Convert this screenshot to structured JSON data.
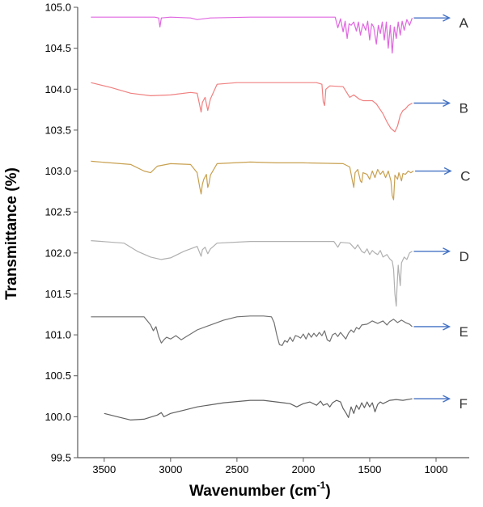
{
  "chart_data": {
    "type": "line",
    "xlabel": "Wavenumber (cm",
    "xlabel_superscript": "-1",
    "xlabel_suffix": ")",
    "ylabel": "Transmittance (%)",
    "xlim": [
      3700,
      750
    ],
    "ylim": [
      99.5,
      105.0
    ],
    "x_ticks": [
      3500,
      3000,
      2500,
      2000,
      1500,
      1000
    ],
    "y_ticks": [
      99.5,
      100.0,
      100.5,
      101.0,
      101.5,
      102.0,
      102.5,
      103.0,
      103.5,
      104.0,
      104.5,
      105.0
    ],
    "grid": false,
    "axis_color": "#595959",
    "arrow_color": "#4472c4",
    "series": [
      {
        "name": "A",
        "color": "#e066e0",
        "points": [
          [
            3600,
            104.88
          ],
          [
            3120,
            104.88
          ],
          [
            3090,
            104.87
          ],
          [
            3080,
            104.76
          ],
          [
            3070,
            104.87
          ],
          [
            3000,
            104.88
          ],
          [
            2850,
            104.87
          ],
          [
            2800,
            104.85
          ],
          [
            2700,
            104.87
          ],
          [
            2400,
            104.88
          ],
          [
            2000,
            104.88
          ],
          [
            1760,
            104.88
          ],
          [
            1740,
            104.75
          ],
          [
            1720,
            104.86
          ],
          [
            1700,
            104.7
          ],
          [
            1685,
            104.83
          ],
          [
            1670,
            104.62
          ],
          [
            1655,
            104.8
          ],
          [
            1640,
            104.78
          ],
          [
            1620,
            104.82
          ],
          [
            1600,
            104.71
          ],
          [
            1585,
            104.82
          ],
          [
            1570,
            104.66
          ],
          [
            1550,
            104.8
          ],
          [
            1530,
            104.72
          ],
          [
            1515,
            104.83
          ],
          [
            1500,
            104.6
          ],
          [
            1485,
            104.8
          ],
          [
            1470,
            104.76
          ],
          [
            1450,
            104.55
          ],
          [
            1435,
            104.78
          ],
          [
            1420,
            104.68
          ],
          [
            1405,
            104.82
          ],
          [
            1390,
            104.6
          ],
          [
            1375,
            104.82
          ],
          [
            1360,
            104.5
          ],
          [
            1345,
            104.78
          ],
          [
            1330,
            104.44
          ],
          [
            1315,
            104.76
          ],
          [
            1300,
            104.62
          ],
          [
            1285,
            104.82
          ],
          [
            1270,
            104.66
          ],
          [
            1255,
            104.83
          ],
          [
            1240,
            104.72
          ],
          [
            1220,
            104.85
          ],
          [
            1200,
            104.78
          ],
          [
            1180,
            104.87
          ]
        ]
      },
      {
        "name": "B",
        "color": "#f08080",
        "points": [
          [
            3600,
            104.08
          ],
          [
            3450,
            104.02
          ],
          [
            3300,
            103.95
          ],
          [
            3150,
            103.92
          ],
          [
            3000,
            103.93
          ],
          [
            2850,
            103.96
          ],
          [
            2800,
            103.95
          ],
          [
            2780,
            103.8
          ],
          [
            2770,
            103.72
          ],
          [
            2760,
            103.84
          ],
          [
            2740,
            103.9
          ],
          [
            2720,
            103.74
          ],
          [
            2700,
            103.88
          ],
          [
            2650,
            104.06
          ],
          [
            2500,
            104.08
          ],
          [
            2200,
            104.08
          ],
          [
            1900,
            104.08
          ],
          [
            1860,
            104.06
          ],
          [
            1850,
            103.85
          ],
          [
            1840,
            103.8
          ],
          [
            1830,
            104.0
          ],
          [
            1800,
            104.04
          ],
          [
            1700,
            104.03
          ],
          [
            1650,
            103.9
          ],
          [
            1620,
            103.93
          ],
          [
            1580,
            103.88
          ],
          [
            1550,
            103.86
          ],
          [
            1480,
            103.86
          ],
          [
            1450,
            103.82
          ],
          [
            1400,
            103.7
          ],
          [
            1370,
            103.6
          ],
          [
            1340,
            103.52
          ],
          [
            1310,
            103.48
          ],
          [
            1290,
            103.55
          ],
          [
            1270,
            103.68
          ],
          [
            1250,
            103.74
          ],
          [
            1230,
            103.76
          ],
          [
            1210,
            103.8
          ],
          [
            1180,
            103.83
          ]
        ]
      },
      {
        "name": "C",
        "color": "#c8a050",
        "points": [
          [
            3600,
            103.12
          ],
          [
            3300,
            103.08
          ],
          [
            3200,
            103.0
          ],
          [
            3150,
            102.98
          ],
          [
            3100,
            103.06
          ],
          [
            3000,
            103.09
          ],
          [
            2850,
            103.08
          ],
          [
            2800,
            102.98
          ],
          [
            2780,
            102.8
          ],
          [
            2770,
            102.72
          ],
          [
            2760,
            102.84
          ],
          [
            2750,
            102.9
          ],
          [
            2730,
            102.96
          ],
          [
            2720,
            102.8
          ],
          [
            2710,
            102.85
          ],
          [
            2700,
            102.95
          ],
          [
            2650,
            103.09
          ],
          [
            2400,
            103.11
          ],
          [
            2200,
            103.1
          ],
          [
            2000,
            103.1
          ],
          [
            1700,
            103.09
          ],
          [
            1650,
            103.05
          ],
          [
            1630,
            102.88
          ],
          [
            1620,
            102.8
          ],
          [
            1610,
            102.98
          ],
          [
            1590,
            103.02
          ],
          [
            1570,
            102.88
          ],
          [
            1560,
            102.86
          ],
          [
            1550,
            102.98
          ],
          [
            1520,
            102.96
          ],
          [
            1500,
            102.9
          ],
          [
            1480,
            103.0
          ],
          [
            1460,
            102.92
          ],
          [
            1440,
            103.02
          ],
          [
            1420,
            102.96
          ],
          [
            1400,
            103.0
          ],
          [
            1380,
            102.92
          ],
          [
            1360,
            103.0
          ],
          [
            1340,
            102.88
          ],
          [
            1330,
            102.7
          ],
          [
            1320,
            102.65
          ],
          [
            1310,
            102.95
          ],
          [
            1290,
            102.9
          ],
          [
            1280,
            102.98
          ],
          [
            1260,
            102.88
          ],
          [
            1250,
            102.97
          ],
          [
            1230,
            102.96
          ],
          [
            1210,
            103.0
          ],
          [
            1190,
            102.98
          ],
          [
            1170,
            103.0
          ]
        ]
      },
      {
        "name": "D",
        "color": "#b0b0b0",
        "points": [
          [
            3600,
            102.15
          ],
          [
            3350,
            102.12
          ],
          [
            3250,
            102.02
          ],
          [
            3150,
            101.95
          ],
          [
            3070,
            101.92
          ],
          [
            3000,
            101.94
          ],
          [
            2900,
            102.02
          ],
          [
            2800,
            102.08
          ],
          [
            2780,
            102.0
          ],
          [
            2770,
            101.96
          ],
          [
            2760,
            102.04
          ],
          [
            2740,
            102.07
          ],
          [
            2720,
            101.99
          ],
          [
            2700,
            102.05
          ],
          [
            2650,
            102.12
          ],
          [
            2400,
            102.14
          ],
          [
            2200,
            102.14
          ],
          [
            1900,
            102.14
          ],
          [
            1770,
            102.14
          ],
          [
            1740,
            102.07
          ],
          [
            1720,
            102.13
          ],
          [
            1650,
            102.12
          ],
          [
            1610,
            102.05
          ],
          [
            1590,
            102.1
          ],
          [
            1560,
            102.02
          ],
          [
            1540,
            102.0
          ],
          [
            1520,
            102.05
          ],
          [
            1500,
            101.98
          ],
          [
            1480,
            102.03
          ],
          [
            1460,
            102.0
          ],
          [
            1440,
            101.98
          ],
          [
            1420,
            102.03
          ],
          [
            1400,
            101.95
          ],
          [
            1370,
            101.98
          ],
          [
            1350,
            101.93
          ],
          [
            1330,
            101.9
          ],
          [
            1320,
            101.8
          ],
          [
            1310,
            101.5
          ],
          [
            1300,
            101.35
          ],
          [
            1295,
            101.55
          ],
          [
            1285,
            101.85
          ],
          [
            1270,
            101.6
          ],
          [
            1260,
            101.88
          ],
          [
            1240,
            101.95
          ],
          [
            1220,
            101.92
          ],
          [
            1200,
            102.0
          ],
          [
            1180,
            102.02
          ]
        ]
      },
      {
        "name": "E",
        "color": "#707070",
        "points": [
          [
            3600,
            101.22
          ],
          [
            3200,
            101.22
          ],
          [
            3150,
            101.12
          ],
          [
            3130,
            101.05
          ],
          [
            3110,
            101.1
          ],
          [
            3090,
            100.98
          ],
          [
            3070,
            100.9
          ],
          [
            3050,
            100.94
          ],
          [
            3030,
            100.97
          ],
          [
            3000,
            100.95
          ],
          [
            2960,
            100.99
          ],
          [
            2920,
            100.94
          ],
          [
            2880,
            100.98
          ],
          [
            2840,
            101.02
          ],
          [
            2800,
            101.06
          ],
          [
            2700,
            101.12
          ],
          [
            2600,
            101.18
          ],
          [
            2500,
            101.22
          ],
          [
            2400,
            101.23
          ],
          [
            2300,
            101.23
          ],
          [
            2240,
            101.22
          ],
          [
            2220,
            101.15
          ],
          [
            2200,
            101.0
          ],
          [
            2180,
            100.88
          ],
          [
            2160,
            100.87
          ],
          [
            2140,
            100.93
          ],
          [
            2120,
            100.91
          ],
          [
            2100,
            100.97
          ],
          [
            2080,
            100.92
          ],
          [
            2060,
            100.99
          ],
          [
            2040,
            100.98
          ],
          [
            2020,
            100.96
          ],
          [
            2000,
            101.01
          ],
          [
            1980,
            100.95
          ],
          [
            1960,
            101.02
          ],
          [
            1940,
            100.97
          ],
          [
            1920,
            101.02
          ],
          [
            1900,
            100.98
          ],
          [
            1880,
            101.03
          ],
          [
            1860,
            100.99
          ],
          [
            1840,
            101.05
          ],
          [
            1820,
            100.94
          ],
          [
            1800,
            100.92
          ],
          [
            1780,
            101.0
          ],
          [
            1760,
            101.02
          ],
          [
            1740,
            100.98
          ],
          [
            1720,
            101.03
          ],
          [
            1700,
            100.99
          ],
          [
            1680,
            100.95
          ],
          [
            1660,
            101.02
          ],
          [
            1640,
            101.06
          ],
          [
            1620,
            101.03
          ],
          [
            1600,
            101.09
          ],
          [
            1580,
            101.07
          ],
          [
            1560,
            101.12
          ],
          [
            1520,
            101.13
          ],
          [
            1480,
            101.17
          ],
          [
            1440,
            101.14
          ],
          [
            1400,
            101.17
          ],
          [
            1370,
            101.12
          ],
          [
            1350,
            101.16
          ],
          [
            1320,
            101.19
          ],
          [
            1290,
            101.15
          ],
          [
            1260,
            101.18
          ],
          [
            1230,
            101.15
          ],
          [
            1200,
            101.13
          ],
          [
            1180,
            101.1
          ]
        ]
      },
      {
        "name": "F",
        "color": "#606060",
        "points": [
          [
            3500,
            100.04
          ],
          [
            3400,
            100.0
          ],
          [
            3300,
            99.96
          ],
          [
            3200,
            99.97
          ],
          [
            3100,
            100.02
          ],
          [
            3070,
            100.05
          ],
          [
            3050,
            100.0
          ],
          [
            3000,
            100.04
          ],
          [
            2900,
            100.08
          ],
          [
            2800,
            100.12
          ],
          [
            2600,
            100.17
          ],
          [
            2400,
            100.2
          ],
          [
            2300,
            100.2
          ],
          [
            2200,
            100.18
          ],
          [
            2150,
            100.17
          ],
          [
            2100,
            100.16
          ],
          [
            2050,
            100.12
          ],
          [
            2000,
            100.16
          ],
          [
            1950,
            100.18
          ],
          [
            1900,
            100.14
          ],
          [
            1870,
            100.19
          ],
          [
            1850,
            100.14
          ],
          [
            1820,
            100.16
          ],
          [
            1800,
            100.12
          ],
          [
            1780,
            100.17
          ],
          [
            1750,
            100.2
          ],
          [
            1720,
            100.18
          ],
          [
            1700,
            100.1
          ],
          [
            1680,
            100.05
          ],
          [
            1660,
            99.99
          ],
          [
            1640,
            100.12
          ],
          [
            1620,
            100.04
          ],
          [
            1600,
            100.14
          ],
          [
            1580,
            100.09
          ],
          [
            1560,
            100.17
          ],
          [
            1540,
            100.11
          ],
          [
            1520,
            100.18
          ],
          [
            1500,
            100.12
          ],
          [
            1480,
            100.17
          ],
          [
            1460,
            100.06
          ],
          [
            1440,
            100.15
          ],
          [
            1420,
            100.18
          ],
          [
            1400,
            100.16
          ],
          [
            1350,
            100.2
          ],
          [
            1300,
            100.21
          ],
          [
            1250,
            100.2
          ],
          [
            1180,
            100.22
          ]
        ]
      }
    ]
  }
}
